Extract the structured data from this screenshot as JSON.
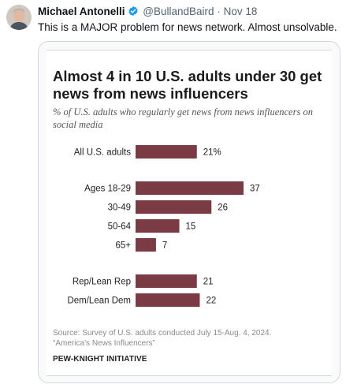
{
  "tweet": {
    "author_name": "Michael Antonelli",
    "handle": "@BullandBaird",
    "separator": "·",
    "date": "Nov 18",
    "verified": true,
    "text": "This is a MAJOR problem for news network.  Almost unsolvable."
  },
  "colors": {
    "bar": "#7a3b44",
    "verified": "#1d9bf0"
  },
  "chart_data": {
    "type": "bar",
    "orientation": "horizontal",
    "title": "Almost 4 in 10 U.S. adults under 30 get news from news influencers",
    "subtitle": "% of U.S. adults who regularly get news from news influencers on social media",
    "categories": [
      "All U.S. adults",
      "Ages 18-29",
      "30-49",
      "50-64",
      "65+",
      "Rep/Lean Rep",
      "Dem/Lean Dem"
    ],
    "groups": [
      [
        "All U.S. adults"
      ],
      [
        "Ages 18-29",
        "30-49",
        "50-64",
        "65+"
      ],
      [
        "Rep/Lean Rep",
        "Dem/Lean Dem"
      ]
    ],
    "values": [
      21,
      37,
      26,
      15,
      7,
      21,
      22
    ],
    "value_labels": [
      "21%",
      "37",
      "26",
      "15",
      "7",
      "21",
      "22"
    ],
    "xlim": [
      0,
      37
    ],
    "grid": false,
    "source_line1": "Source: Survey of U.S. adults conducted July 15-Aug. 4, 2024.",
    "source_line2": "“America’s News Influencers”",
    "organization": "PEW-KNIGHT INITIATIVE"
  }
}
